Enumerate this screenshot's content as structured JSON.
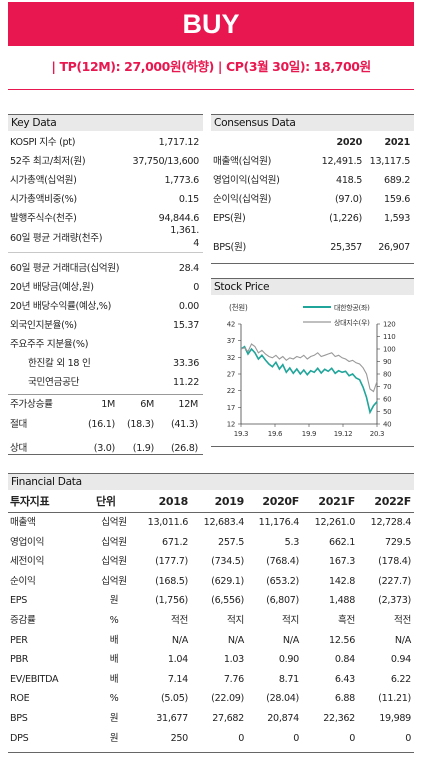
{
  "header": {
    "rating": "BUY",
    "target_line": "| TP(12M): 27,000원(하향) | CP(3월 30일): 18,700원"
  },
  "key_data": {
    "title": "Key Data",
    "rows": [
      {
        "label": "KOSPI 지수 (pt)",
        "value": "1,717.12"
      },
      {
        "label": "52주 최고/최저(원)",
        "value": "37,750/13,600"
      },
      {
        "label": "시가총액(십억원)",
        "value": "1,773.6"
      },
      {
        "label": "시가총액비중(%)",
        "value": "0.15"
      },
      {
        "label": "발행주식수(천주)",
        "value": "94,844.6"
      },
      {
        "label": "60일 평균 거래량(천주)",
        "value": "1,361.4",
        "value_l1": "1,361.",
        "value_l2": "4"
      },
      {
        "label": "60일 평균 거래대금(십억원)",
        "value": "28.4"
      },
      {
        "label": "20년 배당금(예상,원)",
        "value": "0"
      },
      {
        "label": "20년 배당수익률(예상,%)",
        "value": "0.00"
      },
      {
        "label": "외국인지분율(%)",
        "value": "15.37"
      },
      {
        "label": "주요주주 지분율(%)",
        "value": ""
      },
      {
        "label": "한진칼 외 18 인",
        "value": "33.36"
      },
      {
        "label": "국민연금공단",
        "value": "11.22"
      }
    ],
    "perf_header": [
      "주가상승률",
      "1M",
      "6M",
      "12M"
    ],
    "perf_rows": [
      {
        "label": "절대",
        "values": [
          "(16.1)",
          "(18.3)",
          "(41.3)"
        ]
      },
      {
        "label": "상대",
        "values": [
          "(3.0)",
          "(1.9)",
          "(26.8)"
        ]
      }
    ]
  },
  "consensus": {
    "title": "Consensus Data",
    "years": [
      "2020",
      "2021"
    ],
    "rows": [
      {
        "label": "매출액(십억원)",
        "values": [
          "12,491.5",
          "13,117.5"
        ]
      },
      {
        "label": "영업이익(십억원)",
        "values": [
          "418.5",
          "689.2"
        ]
      },
      {
        "label": "순이익(십억원)",
        "values": [
          "(97.0)",
          "159.6"
        ]
      },
      {
        "label": "EPS(원)",
        "values": [
          "(1,226)",
          "1,593"
        ]
      },
      {
        "label": "BPS(원)",
        "values": [
          "25,357",
          "26,907"
        ]
      }
    ]
  },
  "stock_price": {
    "title": "Stock Price",
    "left_unit": "(천원)",
    "legend": [
      "대한항공(좌)",
      "상대지수(우)"
    ],
    "colors": {
      "price": "#1fa59a",
      "relative": "#999999"
    }
  },
  "chart_data": {
    "type": "line",
    "title": "Stock Price",
    "x_ticks": [
      "19.3",
      "19.6",
      "19.9",
      "19.12",
      "20.3"
    ],
    "left_axis": {
      "label": "(천원)",
      "range": [
        12,
        42
      ],
      "ticks": [
        42,
        37,
        32,
        27,
        22,
        17,
        12
      ]
    },
    "right_axis": {
      "range": [
        40,
        120
      ],
      "ticks": [
        120,
        110,
        100,
        90,
        80,
        70,
        60,
        50,
        40
      ]
    },
    "series": [
      {
        "name": "대한항공(좌)",
        "axis": "left",
        "values": [
          34.5,
          35.2,
          33.0,
          34.5,
          33.4,
          31.5,
          32.6,
          31.2,
          30.0,
          29.2,
          30.5,
          28.5,
          29.8,
          27.5,
          28.8,
          27.2,
          28.5,
          27.0,
          28.2,
          26.8,
          28.0,
          27.5,
          28.7,
          27.3,
          28.4,
          27.8,
          28.7,
          27.2,
          28.0,
          27.5,
          27.8,
          26.5,
          27.0,
          25.8,
          25.3,
          23.0,
          20.0,
          15.5,
          17.5,
          18.7
        ]
      },
      {
        "name": "상대지수(우)",
        "axis": "right",
        "values": [
          100,
          101,
          98,
          104,
          102,
          97,
          99,
          96,
          94,
          93,
          95,
          92,
          94,
          91,
          93,
          92,
          94,
          93,
          95,
          92,
          94,
          95,
          97,
          94,
          95,
          96,
          97,
          94,
          95,
          93,
          92,
          90,
          91,
          89,
          88,
          85,
          80,
          68,
          66,
          74
        ]
      }
    ]
  },
  "financial": {
    "title": "Financial Data",
    "header": [
      "투자지표",
      "단위",
      "2018",
      "2019",
      "2020F",
      "2021F",
      "2022F"
    ],
    "rows": [
      {
        "label": "매출액",
        "unit": "십억원",
        "values": [
          "13,011.6",
          "12,683.4",
          "11,176.4",
          "12,261.0",
          "12,728.4"
        ]
      },
      {
        "label": "영업이익",
        "unit": "십억원",
        "values": [
          "671.2",
          "257.5",
          "5.3",
          "662.1",
          "729.5"
        ]
      },
      {
        "label": "세전이익",
        "unit": "십억원",
        "values": [
          "(177.7)",
          "(734.5)",
          "(768.4)",
          "167.3",
          "(178.4)"
        ]
      },
      {
        "label": "순이익",
        "unit": "십억원",
        "values": [
          "(168.5)",
          "(629.1)",
          "(653.2)",
          "142.8",
          "(227.7)"
        ]
      },
      {
        "label": "EPS",
        "unit": "원",
        "values": [
          "(1,756)",
          "(6,556)",
          "(6,807)",
          "1,488",
          "(2,373)"
        ]
      },
      {
        "label": "증감률",
        "unit": "%",
        "values": [
          "적전",
          "적지",
          "적지",
          "흑전",
          "적전"
        ]
      },
      {
        "label": "PER",
        "unit": "배",
        "values": [
          "N/A",
          "N/A",
          "N/A",
          "12.56",
          "N/A"
        ]
      },
      {
        "label": "PBR",
        "unit": "배",
        "values": [
          "1.04",
          "1.03",
          "0.90",
          "0.84",
          "0.94"
        ]
      },
      {
        "label": "EV/EBITDA",
        "unit": "배",
        "values": [
          "7.14",
          "7.76",
          "8.71",
          "6.43",
          "6.22"
        ]
      },
      {
        "label": "ROE",
        "unit": "%",
        "values": [
          "(5.05)",
          "(22.09)",
          "(28.04)",
          "6.88",
          "(11.21)"
        ]
      },
      {
        "label": "BPS",
        "unit": "원",
        "values": [
          "31,677",
          "27,682",
          "20,874",
          "22,362",
          "19,989"
        ]
      },
      {
        "label": "DPS",
        "unit": "원",
        "values": [
          "250",
          "0",
          "0",
          "0",
          "0"
        ]
      }
    ]
  }
}
